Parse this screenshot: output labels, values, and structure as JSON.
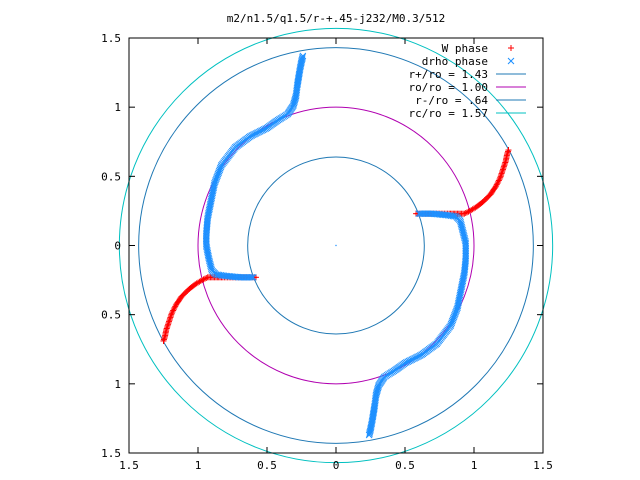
{
  "chart_data": {
    "type": "scatter",
    "title": "m2/n1.5/q1.5/r-+.45-j232/M0.3/512",
    "xlim": [
      -1.5,
      1.5
    ],
    "ylim": [
      -1.5,
      1.5
    ],
    "x_ticks": [
      -1.5,
      -1,
      -0.5,
      0,
      0.5,
      1,
      1.5
    ],
    "y_ticks": [
      -1.5,
      -1,
      -0.5,
      0,
      0.5,
      1,
      1.5
    ],
    "x_tick_labels": [
      "1.5",
      "1",
      "0.5",
      "0",
      "0.5",
      "1",
      "1.5"
    ],
    "y_tick_labels": [
      "1.5",
      "1",
      "0.5",
      "0",
      "0.5",
      "1",
      "1.5"
    ],
    "grid": false,
    "legend_position": "top-right",
    "circles": [
      {
        "name": "r+/ro = 1.43",
        "radius": 1.43,
        "color": "#1f78b4"
      },
      {
        "name": "ro/ro = 1.00",
        "radius": 1.0,
        "color": "#b000b0"
      },
      {
        "name": "r-/ro = .64",
        "radius": 0.64,
        "color": "#1f78b4"
      },
      {
        "name": "rc/ro = 1.57",
        "radius": 1.57,
        "color": "#00c0c0"
      }
    ],
    "series": [
      {
        "name": "W phase",
        "marker": "+",
        "color": "#ff0000",
        "segments": [
          [
            [
              0.58,
              0.23
            ],
            [
              0.66,
              0.23
            ],
            [
              0.74,
              0.23
            ],
            [
              0.82,
              0.23
            ],
            [
              0.88,
              0.23
            ],
            [
              0.93,
              0.23
            ],
            [
              0.97,
              0.25
            ],
            [
              1.02,
              0.28
            ],
            [
              1.07,
              0.32
            ],
            [
              1.12,
              0.37
            ],
            [
              1.16,
              0.43
            ],
            [
              1.19,
              0.49
            ],
            [
              1.21,
              0.55
            ],
            [
              1.23,
              0.61
            ],
            [
              1.24,
              0.66
            ],
            [
              1.25,
              0.69
            ]
          ],
          [
            [
              -0.58,
              -0.23
            ],
            [
              -0.66,
              -0.23
            ],
            [
              -0.74,
              -0.23
            ],
            [
              -0.82,
              -0.23
            ],
            [
              -0.88,
              -0.23
            ],
            [
              -0.93,
              -0.23
            ],
            [
              -0.97,
              -0.25
            ],
            [
              -1.02,
              -0.28
            ],
            [
              -1.07,
              -0.32
            ],
            [
              -1.12,
              -0.37
            ],
            [
              -1.16,
              -0.43
            ],
            [
              -1.19,
              -0.49
            ],
            [
              -1.21,
              -0.55
            ],
            [
              -1.23,
              -0.61
            ],
            [
              -1.24,
              -0.66
            ],
            [
              -1.25,
              -0.69
            ]
          ]
        ]
      },
      {
        "name": "drho phase",
        "marker": "x",
        "color": "#1e90ff",
        "segments": [
          [
            [
              0.6,
              0.23
            ],
            [
              0.7,
              0.23
            ],
            [
              0.8,
              0.22
            ],
            [
              0.87,
              0.21
            ],
            [
              0.9,
              0.18
            ],
            [
              0.92,
              0.1
            ],
            [
              0.94,
              0.02
            ],
            [
              0.94,
              -0.1
            ],
            [
              0.93,
              -0.2
            ],
            [
              0.91,
              -0.3
            ],
            [
              0.88,
              -0.45
            ],
            [
              0.83,
              -0.58
            ],
            [
              0.73,
              -0.71
            ],
            [
              0.62,
              -0.79
            ],
            [
              0.5,
              -0.85
            ],
            [
              0.43,
              -0.9
            ],
            [
              0.35,
              -0.95
            ],
            [
              0.31,
              -1.01
            ],
            [
              0.29,
              -1.08
            ],
            [
              0.28,
              -1.16
            ],
            [
              0.27,
              -1.22
            ],
            [
              0.26,
              -1.28
            ],
            [
              0.25,
              -1.33
            ],
            [
              0.24,
              -1.37
            ]
          ],
          [
            [
              -0.6,
              -0.23
            ],
            [
              -0.7,
              -0.23
            ],
            [
              -0.8,
              -0.22
            ],
            [
              -0.87,
              -0.21
            ],
            [
              -0.9,
              -0.18
            ],
            [
              -0.92,
              -0.1
            ],
            [
              -0.94,
              0.0
            ],
            [
              -0.94,
              0.08
            ],
            [
              -0.93,
              0.2
            ],
            [
              -0.91,
              0.3
            ],
            [
              -0.88,
              0.45
            ],
            [
              -0.83,
              0.58
            ],
            [
              -0.73,
              0.71
            ],
            [
              -0.62,
              0.79
            ],
            [
              -0.5,
              0.85
            ],
            [
              -0.43,
              0.9
            ],
            [
              -0.35,
              0.95
            ],
            [
              -0.31,
              1.01
            ],
            [
              -0.29,
              1.08
            ],
            [
              -0.28,
              1.16
            ],
            [
              -0.27,
              1.22
            ],
            [
              -0.26,
              1.28
            ],
            [
              -0.25,
              1.33
            ],
            [
              -0.24,
              1.37
            ]
          ]
        ]
      }
    ]
  }
}
